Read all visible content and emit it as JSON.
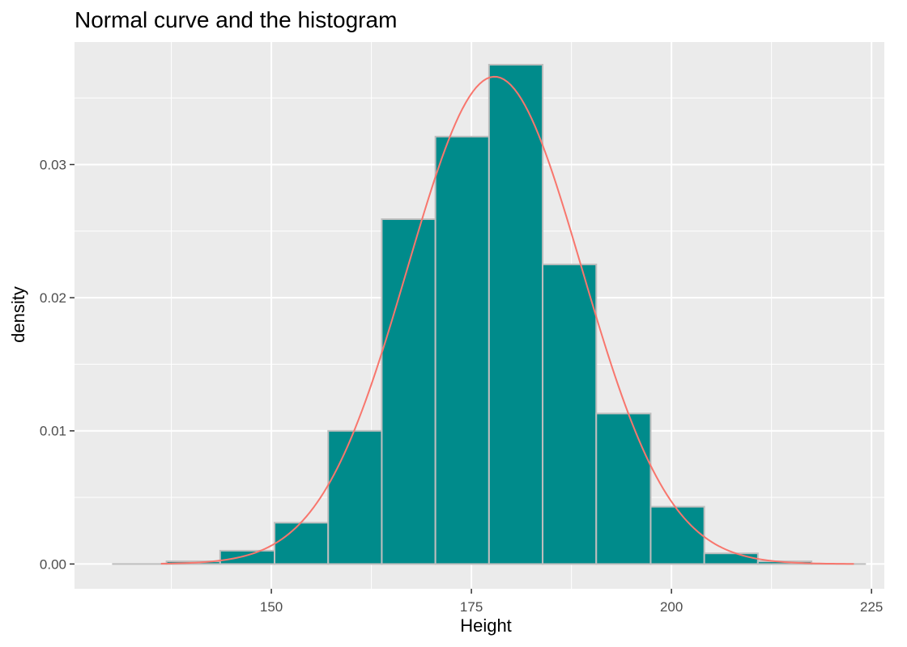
{
  "chart_data": {
    "type": "bar",
    "title": "Normal curve and the histogram",
    "xlabel": "Height",
    "ylabel": "density",
    "xlim": [
      125.4,
      226.6
    ],
    "ylim": [
      -0.00186,
      0.0392
    ],
    "x_ticks": [
      150,
      175,
      200,
      225
    ],
    "y_ticks": [
      0.0,
      0.01,
      0.02,
      0.03
    ],
    "y_tick_labels": [
      "0.00",
      "0.01",
      "0.02",
      "0.03"
    ],
    "grid": true,
    "bins": [
      {
        "x_start": 130.2,
        "x_end": 136.9,
        "density": 0.0
      },
      {
        "x_start": 136.9,
        "x_end": 143.6,
        "density": 0.0002
      },
      {
        "x_start": 143.6,
        "x_end": 150.4,
        "density": 0.001
      },
      {
        "x_start": 150.4,
        "x_end": 157.1,
        "density": 0.0031
      },
      {
        "x_start": 157.1,
        "x_end": 163.8,
        "density": 0.01
      },
      {
        "x_start": 163.8,
        "x_end": 170.5,
        "density": 0.0259
      },
      {
        "x_start": 170.5,
        "x_end": 177.2,
        "density": 0.0321
      },
      {
        "x_start": 177.2,
        "x_end": 183.9,
        "density": 0.0375
      },
      {
        "x_start": 183.9,
        "x_end": 190.6,
        "density": 0.0225
      },
      {
        "x_start": 190.6,
        "x_end": 197.4,
        "density": 0.0113
      },
      {
        "x_start": 197.4,
        "x_end": 204.1,
        "density": 0.0043
      },
      {
        "x_start": 204.1,
        "x_end": 210.8,
        "density": 0.0008
      },
      {
        "x_start": 210.8,
        "x_end": 217.5,
        "density": 0.0002
      },
      {
        "x_start": 217.5,
        "x_end": 224.2,
        "density": 0.0
      }
    ],
    "normal_curve": {
      "mean": 177.9,
      "sd": 10.9,
      "x_range": [
        136.2,
        222.8
      ]
    },
    "colors": {
      "panel_background": "#ebebeb",
      "grid_major": "#ffffff",
      "bar_fill": "#008b8b",
      "bar_border": "#bebebe",
      "curve": "#f8766d",
      "tick_label": "#4d4d4d",
      "tick_mark": "#333333"
    }
  }
}
